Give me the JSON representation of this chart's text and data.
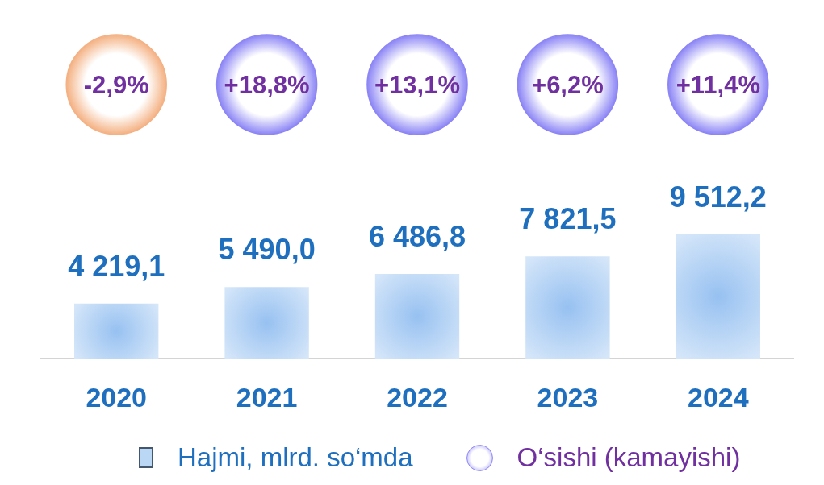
{
  "chart_data": [
    {
      "type": "other",
      "categories": [
        null,
        null,
        null,
        null,
        null
      ],
      "series": [
        {
          "name": "O‘sishi (kamayishi)",
          "color": "#8c85f5",
          "colors": [
            "#f4b183",
            "#8c85f5",
            "#8c85f5",
            "#8c85f5",
            "#8c85f5"
          ],
          "values": [
            -2.9,
            18.8,
            13.1,
            6.2,
            11.4
          ],
          "value_labels": [
            "-2,9%",
            "+18,8%",
            "+13,1%",
            "+6,2%",
            "+11,4%"
          ]
        }
      ],
      "legend": "bottom"
    },
    {
      "type": "bar",
      "categories": [
        "2020",
        "2021",
        "2022",
        "2023",
        "2024"
      ],
      "series": [
        {
          "name": "Hajmi, mlrd. so‘mda",
          "color": "#97c1f1",
          "values": [
            4219.1,
            5490.0,
            6486.8,
            7821.5,
            9512.2
          ],
          "value_labels": [
            "4 219,1",
            "5 490,0",
            "6 486,8",
            "7 821,5",
            "9 512,2"
          ]
        }
      ],
      "legend": "bottom",
      "tick_labels": "x"
    }
  ]
}
